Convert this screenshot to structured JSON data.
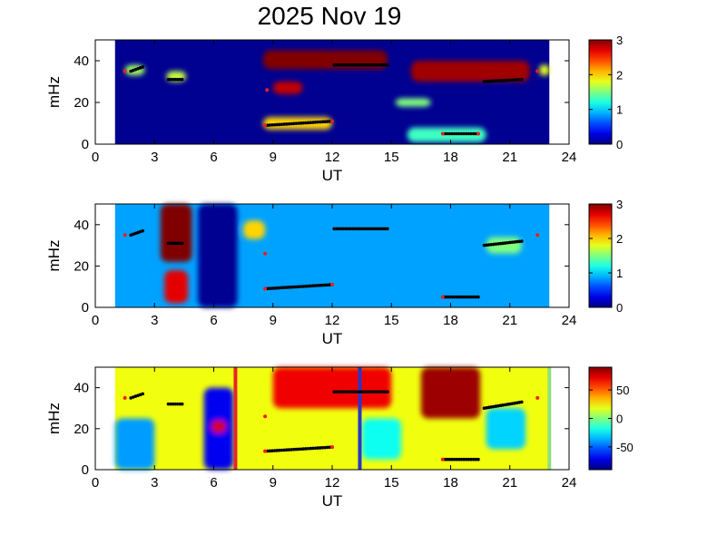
{
  "title": "2025 Nov 19",
  "chart_data": [
    {
      "type": "heatmap",
      "xlabel": "UT",
      "ylabel": "mHz",
      "xlim": [
        0,
        24
      ],
      "ylim": [
        0,
        50
      ],
      "xticks": [
        "0",
        "3",
        "6",
        "9",
        "12",
        "15",
        "18",
        "21",
        "24"
      ],
      "yticks": [
        "0",
        "20",
        "40"
      ],
      "colorbar": {
        "min": 0,
        "max": 3,
        "ticks": [
          "0",
          "1",
          "2",
          "3"
        ]
      },
      "data_range_ut": [
        1,
        23
      ],
      "background_level": 0.05,
      "features": [
        {
          "t0": 8.5,
          "t1": 14.8,
          "f0": 36,
          "f1": 45,
          "v": 3.0
        },
        {
          "t0": 16.0,
          "t1": 22.0,
          "f0": 30,
          "f1": 40,
          "v": 2.9
        },
        {
          "t0": 9.0,
          "t1": 10.5,
          "f0": 24,
          "f1": 30,
          "v": 2.8
        },
        {
          "t0": 8.5,
          "t1": 12.0,
          "f0": 7,
          "f1": 13,
          "v": 2.0
        },
        {
          "t0": 1.5,
          "t1": 2.5,
          "f0": 33,
          "f1": 38,
          "v": 1.6
        },
        {
          "t0": 3.6,
          "t1": 4.6,
          "f0": 30,
          "f1": 35,
          "v": 1.7
        },
        {
          "t0": 15.2,
          "t1": 17.0,
          "f0": 18,
          "f1": 22,
          "v": 1.5
        },
        {
          "t0": 15.8,
          "t1": 19.8,
          "f0": 1,
          "f1": 8,
          "v": 1.3
        },
        {
          "t0": 22.5,
          "t1": 23.0,
          "f0": 33,
          "f1": 38,
          "v": 1.8
        }
      ],
      "markers": [
        {
          "type": "black",
          "segments": [
            {
              "t0": 1.8,
              "t1": 2.4,
              "f0": 35,
              "f1": 37
            },
            {
              "t0": 3.7,
              "t1": 4.4,
              "f0": 31,
              "f1": 31
            },
            {
              "t0": 8.6,
              "t1": 12.0,
              "f0": 9,
              "f1": 11
            },
            {
              "t0": 12.1,
              "t1": 14.8,
              "f0": 38,
              "f1": 38
            },
            {
              "t0": 17.7,
              "t1": 19.4,
              "f0": 5,
              "f1": 5
            },
            {
              "t0": 19.7,
              "t1": 21.6,
              "f0": 30,
              "f1": 31
            }
          ]
        },
        {
          "type": "red",
          "points": [
            [
              1.5,
              35
            ],
            [
              8.7,
              26
            ],
            [
              8.6,
              9
            ],
            [
              12.0,
              11
            ],
            [
              17.6,
              5
            ],
            [
              19.4,
              5
            ],
            [
              22.4,
              35
            ]
          ]
        }
      ]
    },
    {
      "type": "heatmap",
      "xlabel": "UT",
      "ylabel": "mHz",
      "xlim": [
        0,
        24
      ],
      "ylim": [
        0,
        50
      ],
      "xticks": [
        "0",
        "3",
        "6",
        "9",
        "12",
        "15",
        "18",
        "21",
        "24"
      ],
      "yticks": [
        "0",
        "20",
        "40"
      ],
      "colorbar": {
        "min": 0,
        "max": 3,
        "ticks": [
          "0",
          "1",
          "2",
          "3"
        ]
      },
      "data_range_ut": [
        1,
        23
      ],
      "background_level": 0.85,
      "features": [
        {
          "t0": 3.3,
          "t1": 4.9,
          "f0": 22,
          "f1": 50,
          "v": 3.0
        },
        {
          "t0": 3.5,
          "t1": 4.7,
          "f0": 2,
          "f1": 18,
          "v": 2.7
        },
        {
          "t0": 5.2,
          "t1": 7.2,
          "f0": 0,
          "f1": 50,
          "v": 0.05
        },
        {
          "t0": 7.5,
          "t1": 8.6,
          "f0": 33,
          "f1": 42,
          "v": 2.0
        },
        {
          "t0": 19.8,
          "t1": 21.6,
          "f0": 26,
          "f1": 34,
          "v": 1.5
        }
      ],
      "markers": [
        {
          "type": "black",
          "segments": [
            {
              "t0": 1.8,
              "t1": 2.4,
              "f0": 35,
              "f1": 37
            },
            {
              "t0": 3.7,
              "t1": 4.4,
              "f0": 31,
              "f1": 31
            },
            {
              "t0": 8.6,
              "t1": 12.0,
              "f0": 9,
              "f1": 11
            },
            {
              "t0": 12.1,
              "t1": 14.8,
              "f0": 38,
              "f1": 38
            },
            {
              "t0": 17.7,
              "t1": 19.4,
              "f0": 5,
              "f1": 5
            },
            {
              "t0": 19.7,
              "t1": 21.6,
              "f0": 30,
              "f1": 32
            }
          ]
        },
        {
          "type": "red",
          "points": [
            [
              1.5,
              35
            ],
            [
              8.6,
              26
            ],
            [
              8.6,
              9
            ],
            [
              12.0,
              11
            ],
            [
              17.6,
              5
            ],
            [
              22.4,
              35
            ]
          ]
        }
      ]
    },
    {
      "type": "heatmap",
      "xlabel": "UT",
      "ylabel": "mHz",
      "xlim": [
        0,
        24
      ],
      "ylim": [
        0,
        50
      ],
      "xticks": [
        "0",
        "3",
        "6",
        "9",
        "12",
        "15",
        "18",
        "21",
        "24"
      ],
      "yticks": [
        "0",
        "20",
        "40"
      ],
      "colorbar": {
        "min": -90,
        "max": 90,
        "ticks": [
          "-50",
          "0",
          "50"
        ]
      },
      "data_range_ut": [
        1,
        23
      ],
      "background_level": 20,
      "features": [
        {
          "t0": 9.0,
          "t1": 15.0,
          "f0": 30,
          "f1": 50,
          "v": 70
        },
        {
          "t0": 16.5,
          "t1": 19.5,
          "f0": 25,
          "f1": 50,
          "v": 85
        },
        {
          "t0": 1.0,
          "t1": 3.0,
          "f0": 0,
          "f1": 25,
          "v": -40
        },
        {
          "t0": 5.5,
          "t1": 7.0,
          "f0": 0,
          "f1": 40,
          "v": -70
        },
        {
          "t0": 5.9,
          "t1": 6.6,
          "f0": 18,
          "f1": 24,
          "v": 75
        },
        {
          "t0": 19.8,
          "t1": 21.8,
          "f0": 10,
          "f1": 30,
          "v": -30
        },
        {
          "t0": 13.5,
          "t1": 15.5,
          "f0": 5,
          "f1": 25,
          "v": -20
        }
      ],
      "lines": [
        {
          "t": 7.1,
          "color": "#e5262d"
        },
        {
          "t": 13.4,
          "color": "#2936c8"
        },
        {
          "t": 23.0,
          "color": "#8fe07a"
        }
      ],
      "markers": [
        {
          "type": "black",
          "segments": [
            {
              "t0": 1.8,
              "t1": 2.4,
              "f0": 35,
              "f1": 37
            },
            {
              "t0": 3.7,
              "t1": 4.4,
              "f0": 32,
              "f1": 32
            },
            {
              "t0": 8.6,
              "t1": 12.0,
              "f0": 9,
              "f1": 11
            },
            {
              "t0": 12.1,
              "t1": 14.8,
              "f0": 38,
              "f1": 38
            },
            {
              "t0": 17.7,
              "t1": 19.4,
              "f0": 5,
              "f1": 5
            },
            {
              "t0": 19.7,
              "t1": 21.6,
              "f0": 30,
              "f1": 33
            }
          ]
        },
        {
          "type": "red",
          "points": [
            [
              1.5,
              35
            ],
            [
              8.6,
              26
            ],
            [
              8.6,
              9
            ],
            [
              12.0,
              11
            ],
            [
              17.6,
              5
            ],
            [
              22.4,
              35
            ]
          ]
        }
      ]
    }
  ]
}
